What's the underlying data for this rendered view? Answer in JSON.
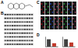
{
  "figure": {
    "panel_labels": [
      "A",
      "B",
      "C",
      "D"
    ]
  },
  "chart_data": [
    {
      "type": "bar",
      "categories": [
        null,
        null
      ],
      "values": [
        1.0,
        0.45
      ],
      "colors": [
        "#404040",
        "#c0392b"
      ],
      "ylim": [
        0,
        1.4
      ],
      "tick_labels": false
    },
    {
      "type": "bar",
      "categories": [
        null,
        null
      ],
      "values": [
        1.0,
        0.55
      ],
      "colors": [
        "#404040",
        "#c0392b"
      ],
      "ylim": [
        0,
        1.4
      ],
      "tick_labels": false
    }
  ]
}
